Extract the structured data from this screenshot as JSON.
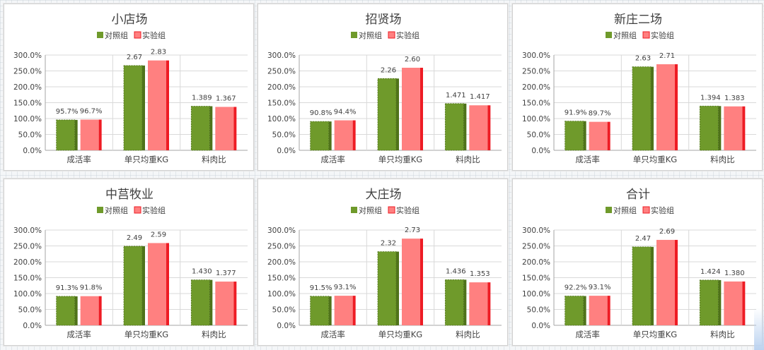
{
  "legend": {
    "control": "对照组",
    "experiment": "实验组"
  },
  "colors": {
    "control": "#6f9a2b",
    "control_dark": "#4f731a",
    "experiment": "#ff8080",
    "experiment_side": "#ee1c24",
    "axis": "#a6a6a6",
    "gridline": "#d9d9d9",
    "text": "#404040"
  },
  "chart_data": [
    {
      "type": "bar",
      "title": "小店场",
      "categories": [
        "成活率",
        "单只均重KG",
        "料肉比"
      ],
      "yticks": [
        "0.0%",
        "50.0%",
        "100.0%",
        "150.0%",
        "200.0%",
        "250.0%",
        "300.0%"
      ],
      "ylim": [
        0,
        300
      ],
      "series": [
        {
          "name": "对照组",
          "values": [
            95.7,
            267,
            138.9
          ],
          "labels": [
            "95.7%",
            "2.67",
            "1.389"
          ]
        },
        {
          "name": "实验组",
          "values": [
            96.7,
            283,
            136.7
          ],
          "labels": [
            "96.7%",
            "2.83",
            "1.367"
          ]
        }
      ]
    },
    {
      "type": "bar",
      "title": "招贤场",
      "categories": [
        "成活率",
        "单只均重KG",
        "料肉比"
      ],
      "yticks": [
        "0.0%",
        "50.0%",
        "100.0%",
        "150.0%",
        "200.0%",
        "250.0%",
        "300.0%"
      ],
      "ylim": [
        0,
        300
      ],
      "series": [
        {
          "name": "对照组",
          "values": [
            90.8,
            226,
            147.1
          ],
          "labels": [
            "90.8%",
            "2.26",
            "1.471"
          ]
        },
        {
          "name": "实验组",
          "values": [
            94.4,
            260,
            141.7
          ],
          "labels": [
            "94.4%",
            "2.60",
            "1.417"
          ]
        }
      ]
    },
    {
      "type": "bar",
      "title": "新庄二场",
      "categories": [
        "成活率",
        "单只均重KG",
        "料肉比"
      ],
      "yticks": [
        "0.0%",
        "50.0%",
        "100.0%",
        "150.0%",
        "200.0%",
        "250.0%",
        "300.0%"
      ],
      "ylim": [
        0,
        300
      ],
      "series": [
        {
          "name": "对照组",
          "values": [
            91.9,
            263,
            139.4
          ],
          "labels": [
            "91.9%",
            "2.63",
            "1.394"
          ]
        },
        {
          "name": "实验组",
          "values": [
            89.7,
            271,
            138.3
          ],
          "labels": [
            "89.7%",
            "2.71",
            "1.383"
          ]
        }
      ]
    },
    {
      "type": "bar",
      "title": "中莒牧业",
      "categories": [
        "成活率",
        "单只均重KG",
        "料肉比"
      ],
      "yticks": [
        "0.0%",
        "50.0%",
        "100.0%",
        "150.0%",
        "200.0%",
        "250.0%",
        "300.0%"
      ],
      "ylim": [
        0,
        300
      ],
      "series": [
        {
          "name": "对照组",
          "values": [
            91.3,
            249,
            143.0
          ],
          "labels": [
            "91.3%",
            "2.49",
            "1.430"
          ]
        },
        {
          "name": "实验组",
          "values": [
            91.8,
            259,
            137.7
          ],
          "labels": [
            "91.8%",
            "2.59",
            "1.377"
          ]
        }
      ]
    },
    {
      "type": "bar",
      "title": "大庄场",
      "categories": [
        "成活率",
        "单只均重KG",
        "料肉比"
      ],
      "yticks": [
        "0.0%",
        "50.0%",
        "100.0%",
        "150.0%",
        "200.0%",
        "250.0%",
        "300.0%"
      ],
      "ylim": [
        0,
        300
      ],
      "series": [
        {
          "name": "对照组",
          "values": [
            91.5,
            232,
            143.6
          ],
          "labels": [
            "91.5%",
            "2.32",
            "1.436"
          ]
        },
        {
          "name": "实验组",
          "values": [
            93.1,
            273,
            135.3
          ],
          "labels": [
            "93.1%",
            "2.73",
            "1.353"
          ]
        }
      ]
    },
    {
      "type": "bar",
      "title": "合计",
      "categories": [
        "成活率",
        "单只均重KG",
        "料肉比"
      ],
      "yticks": [
        "0.0%",
        "50.0%",
        "100.0%",
        "150.0%",
        "200.0%",
        "250.0%",
        "300.0%"
      ],
      "ylim": [
        0,
        300
      ],
      "series": [
        {
          "name": "对照组",
          "values": [
            92.2,
            247,
            142.4
          ],
          "labels": [
            "92.2%",
            "2.47",
            "1.424"
          ]
        },
        {
          "name": "实验组",
          "values": [
            93.1,
            269,
            138.0
          ],
          "labels": [
            "93.1%",
            "2.69",
            "1.380"
          ]
        }
      ]
    }
  ]
}
